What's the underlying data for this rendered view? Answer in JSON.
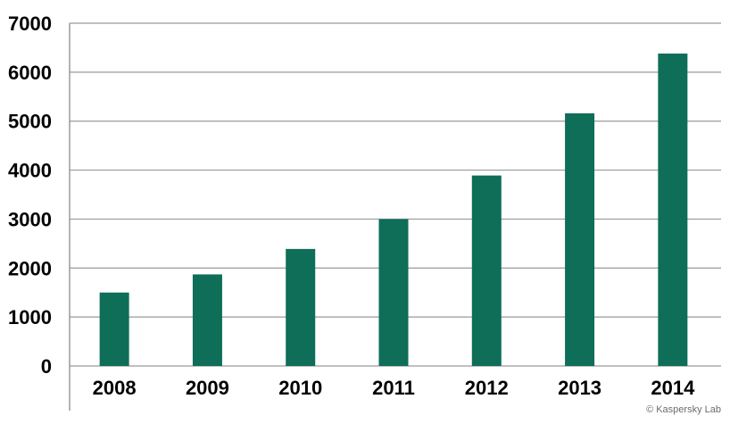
{
  "chart_data": {
    "type": "bar",
    "categories": [
      "2008",
      "2009",
      "2010",
      "2011",
      "2012",
      "2013",
      "2014"
    ],
    "values": [
      1500,
      1870,
      2390,
      3000,
      3890,
      5160,
      6380
    ],
    "title": "",
    "xlabel": "",
    "ylabel": "",
    "ylim": [
      0,
      7000
    ],
    "yticks": [
      "0",
      "1000",
      "2000",
      "3000",
      "4000",
      "5000",
      "6000",
      "7000"
    ],
    "grid": true,
    "bar_color": "#0e6e58",
    "grid_color": "#9a9a9a"
  },
  "footer": {
    "copyright": "© Kaspersky Lab"
  }
}
